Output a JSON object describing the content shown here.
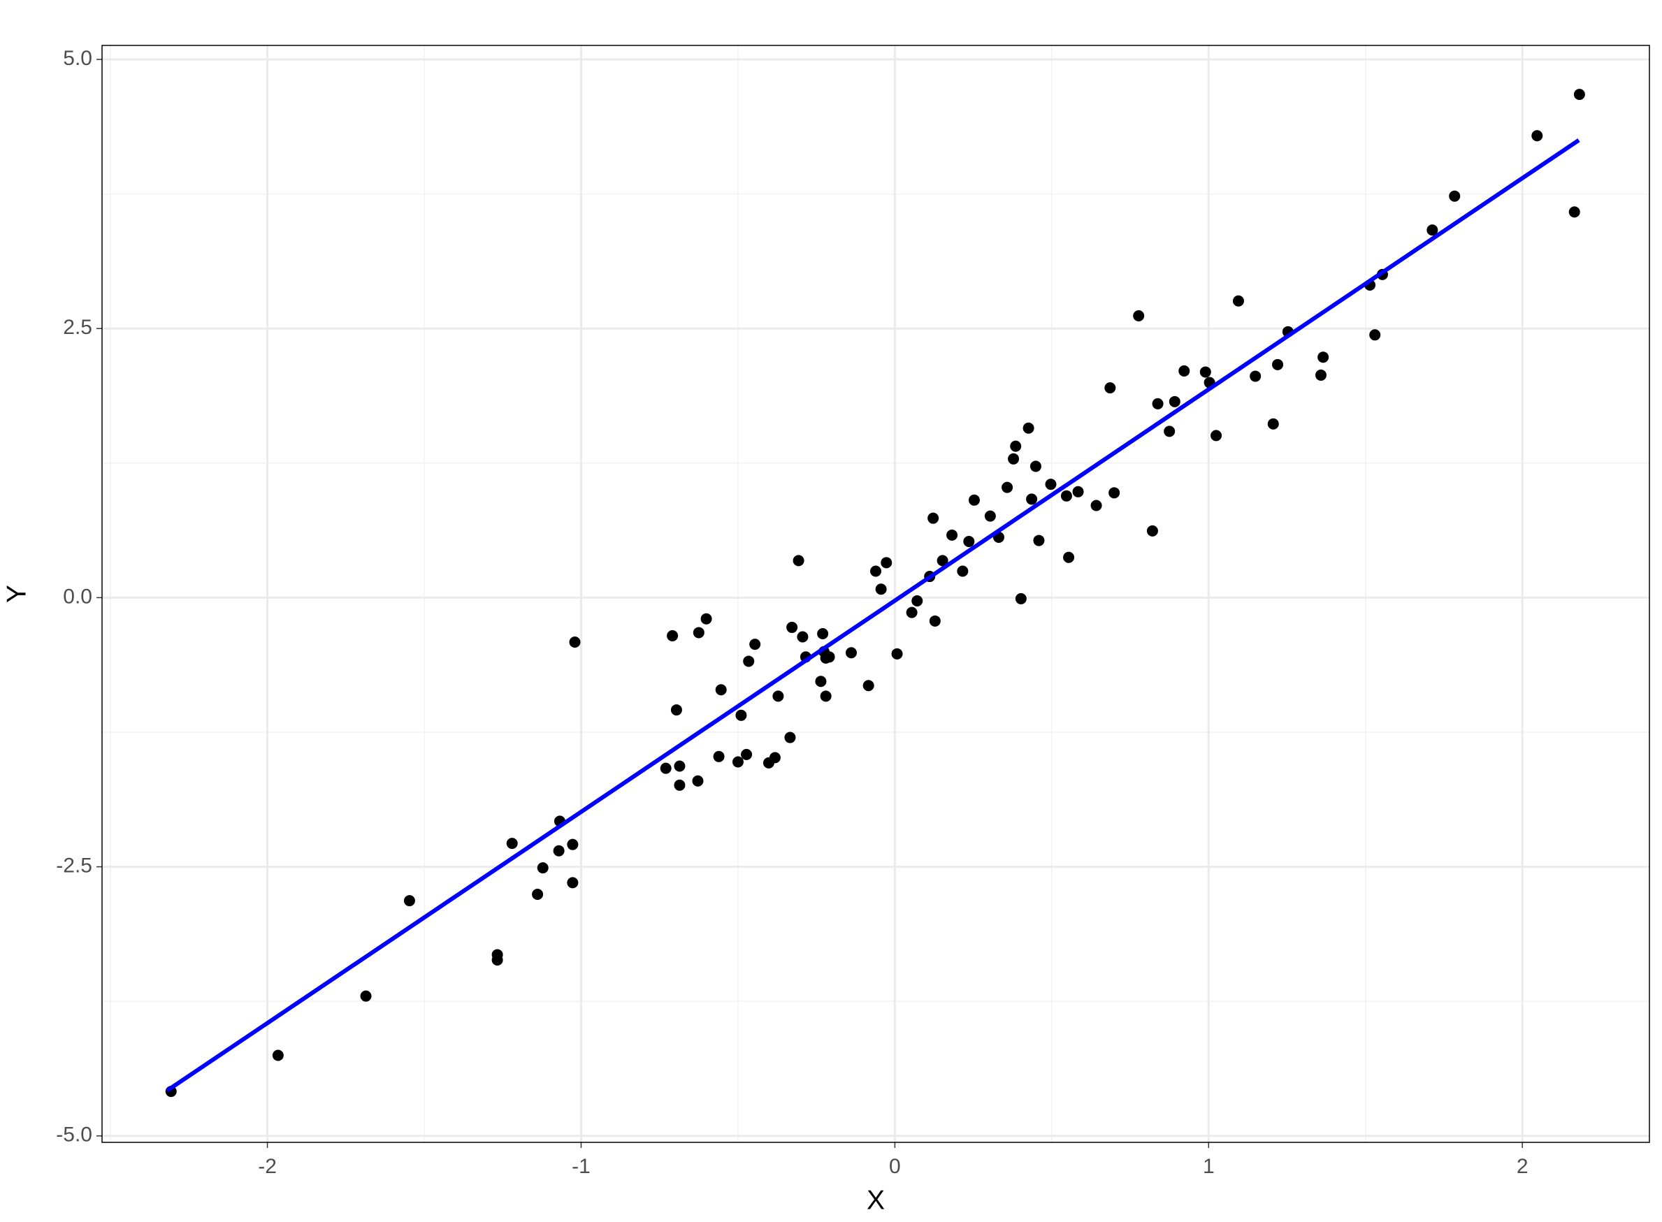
{
  "chart_data": {
    "type": "scatter",
    "x_label": "X",
    "y_label": "Y",
    "x": [
      -2.307,
      -1.966,
      -1.686,
      -1.547,
      -1.267,
      -1.267,
      -1.22,
      -1.139,
      -1.122,
      -1.071,
      -1.068,
      -1.027,
      -1.027,
      -1.02,
      -0.73,
      -0.709,
      -0.696,
      -0.686,
      -0.686,
      -0.628,
      -0.625,
      -0.601,
      -0.561,
      -0.554,
      -0.5,
      -0.49,
      -0.473,
      -0.466,
      -0.446,
      -0.402,
      -0.382,
      -0.372,
      -0.334,
      -0.328,
      -0.307,
      -0.294,
      -0.284,
      -0.236,
      -0.23,
      -0.226,
      -0.22,
      -0.22,
      -0.209,
      -0.139,
      -0.084,
      -0.061,
      -0.044,
      -0.027,
      0.007,
      0.054,
      0.071,
      0.111,
      0.122,
      0.128,
      0.152,
      0.182,
      0.216,
      0.236,
      0.253,
      0.304,
      0.331,
      0.358,
      0.378,
      0.385,
      0.402,
      0.426,
      0.436,
      0.449,
      0.459,
      0.497,
      0.547,
      0.554,
      0.584,
      0.642,
      0.686,
      0.699,
      0.777,
      0.821,
      0.838,
      0.875,
      0.892,
      0.922,
      0.99,
      1.003,
      1.024,
      1.095,
      1.149,
      1.206,
      1.22,
      1.253,
      1.358,
      1.365,
      1.514,
      1.53,
      1.554,
      1.713,
      1.784,
      2.047,
      2.166,
      2.182
    ],
    "values": [
      -4.587,
      -4.252,
      -3.701,
      -2.815,
      -3.317,
      -3.366,
      -2.283,
      -2.756,
      -2.51,
      -2.352,
      -2.077,
      -2.293,
      -2.648,
      -0.413,
      -1.585,
      -0.354,
      -1.043,
      -1.565,
      -1.742,
      -1.703,
      -0.325,
      -0.197,
      -1.476,
      -0.856,
      -1.526,
      -1.093,
      -1.457,
      -0.591,
      -0.433,
      -1.535,
      -1.486,
      -0.915,
      -1.299,
      -0.276,
      0.344,
      -0.364,
      -0.551,
      -0.778,
      -0.335,
      -0.502,
      -0.561,
      -0.915,
      -0.551,
      -0.512,
      -0.817,
      0.246,
      0.079,
      0.325,
      -0.522,
      -0.138,
      -0.03,
      0.197,
      0.738,
      -0.217,
      0.344,
      0.581,
      0.246,
      0.522,
      0.906,
      0.758,
      0.561,
      1.024,
      1.289,
      1.407,
      -0.01,
      1.575,
      0.915,
      1.22,
      0.531,
      1.053,
      0.945,
      0.374,
      0.984,
      0.856,
      1.949,
      0.974,
      2.618,
      0.62,
      1.801,
      1.545,
      1.821,
      2.106,
      2.096,
      1.998,
      1.506,
      2.756,
      2.057,
      1.614,
      2.165,
      2.47,
      2.067,
      2.234,
      2.904,
      2.441,
      3.002,
      3.415,
      3.73,
      4.291,
      3.583,
      4.675
    ],
    "color": "#000000",
    "fit": {
      "x": [
        -2.32,
        2.18
      ],
      "y": [
        -4.58,
        4.25
      ],
      "color": "#0000ff"
    },
    "xlim": [
      -2.527,
      2.405
    ],
    "ylim": [
      -5.06,
      5.13
    ],
    "xticks": [
      -2,
      -1,
      0,
      1,
      2
    ],
    "yticks": [
      {
        "value": -5,
        "label": "-5.0"
      },
      {
        "value": -2.5,
        "label": "-2.5"
      },
      {
        "value": 0,
        "label": "0.0"
      },
      {
        "value": 2.5,
        "label": "2.5"
      },
      {
        "value": 5,
        "label": "5.0"
      }
    ],
    "grid": true
  }
}
